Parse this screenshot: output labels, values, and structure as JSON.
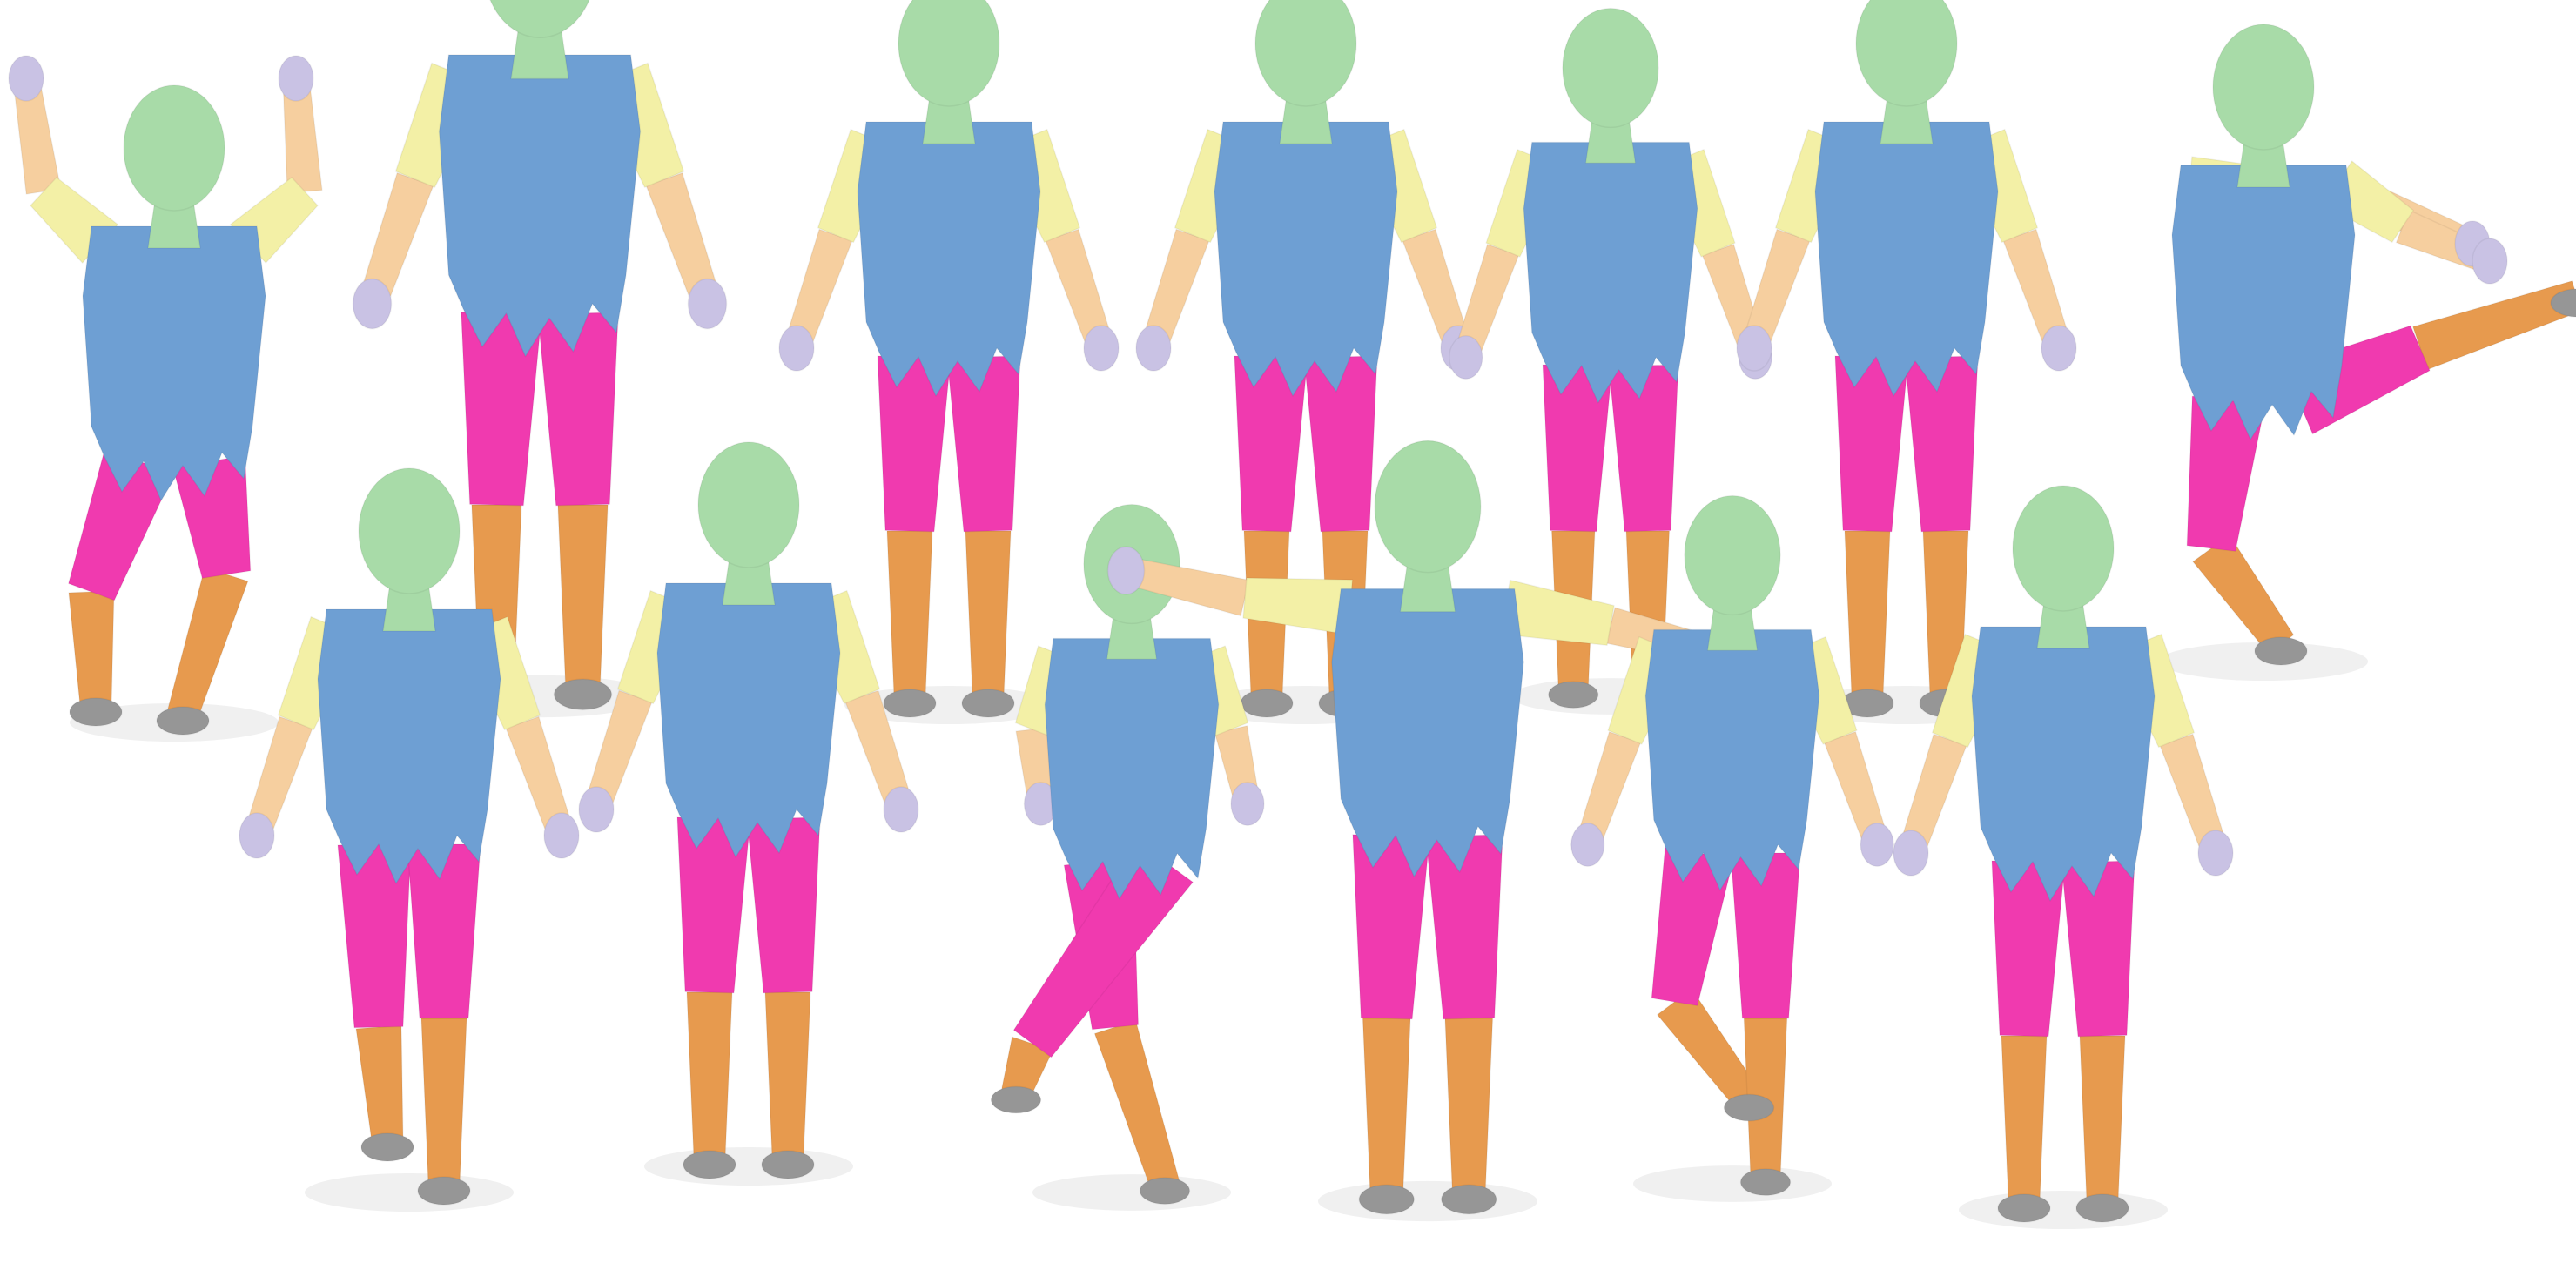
{
  "palette": {
    "head": "#a8dba8",
    "torso": "#6e9fd3",
    "upper_arm": "#f3f0a6",
    "forearm": "#f6cf9f",
    "hand": "#c9c2e4",
    "thigh": "#f03aaf",
    "shin": "#e79a4e",
    "foot": "#969696",
    "shadow": "#e9e9e9",
    "background": "#ffffff"
  },
  "figures": [
    {
      "id": "back-row-1",
      "pose": "crouch-arms-raised",
      "arms": "up",
      "legs": "crouch"
    },
    {
      "id": "back-row-2",
      "pose": "standing",
      "arms": "down",
      "legs": "stand"
    },
    {
      "id": "back-row-3",
      "pose": "standing",
      "arms": "down",
      "legs": "stand"
    },
    {
      "id": "back-row-4",
      "pose": "standing",
      "arms": "down",
      "legs": "stand"
    },
    {
      "id": "back-row-5",
      "pose": "standing",
      "arms": "down",
      "legs": "stand"
    },
    {
      "id": "back-row-6",
      "pose": "standing",
      "arms": "down",
      "legs": "stand"
    },
    {
      "id": "back-row-7",
      "pose": "leaning-leg-kick",
      "arms": "forward",
      "legs": "kick"
    },
    {
      "id": "front-row-1",
      "pose": "walking",
      "arms": "down",
      "legs": "walk"
    },
    {
      "id": "front-row-2",
      "pose": "standing",
      "arms": "down",
      "legs": "stand"
    },
    {
      "id": "front-row-3",
      "pose": "running",
      "arms": "bent",
      "legs": "run"
    },
    {
      "id": "front-row-4",
      "pose": "arms-out",
      "arms": "out",
      "legs": "stand"
    },
    {
      "id": "front-row-5",
      "pose": "stepping",
      "arms": "down",
      "legs": "step"
    },
    {
      "id": "front-row-6",
      "pose": "standing-back-view",
      "arms": "down",
      "legs": "stand"
    }
  ]
}
